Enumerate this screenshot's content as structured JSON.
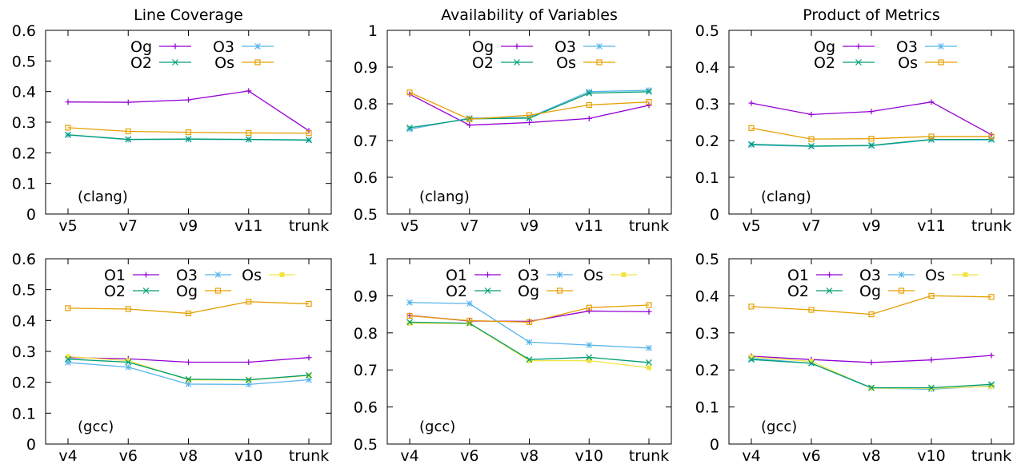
{
  "figure_title": "",
  "chart_data": [
    {
      "type": "line",
      "title": "Line Coverage",
      "note": "(clang)",
      "categories": [
        "v5",
        "v7",
        "v9",
        "v11",
        "trunk"
      ],
      "ylim": [
        0,
        0.6
      ],
      "yticks": [
        "0",
        "0.1",
        "0.2",
        "0.3",
        "0.4",
        "0.5",
        "0.6"
      ],
      "legend_layout": [
        [
          "Og",
          "O3"
        ],
        [
          "O2",
          "Os"
        ]
      ],
      "series": [
        {
          "name": "Og",
          "color": "#9400d3",
          "marker": "plus",
          "values": [
            0.366,
            0.365,
            0.373,
            0.402,
            0.272
          ]
        },
        {
          "name": "O3",
          "color": "#56b4e9",
          "marker": "star",
          "values": [
            0.258,
            0.243,
            0.244,
            0.243,
            0.241
          ]
        },
        {
          "name": "O2",
          "color": "#009e73",
          "marker": "cross",
          "values": [
            0.259,
            0.244,
            0.245,
            0.244,
            0.242
          ]
        },
        {
          "name": "Os",
          "color": "#e69f00",
          "marker": "square",
          "values": [
            0.282,
            0.27,
            0.267,
            0.265,
            0.264
          ]
        }
      ]
    },
    {
      "type": "line",
      "title": "Availability of Variables",
      "note": "(clang)",
      "categories": [
        "v5",
        "v7",
        "v9",
        "v11",
        "trunk"
      ],
      "ylim": [
        0.5,
        1
      ],
      "yticks": [
        "0.5",
        "0.6",
        "0.7",
        "0.8",
        "0.9",
        "1"
      ],
      "legend_layout": [
        [
          "Og",
          "O3"
        ],
        [
          "O2",
          "Os"
        ]
      ],
      "series": [
        {
          "name": "Og",
          "color": "#9400d3",
          "marker": "plus",
          "values": [
            0.826,
            0.742,
            0.749,
            0.76,
            0.796
          ]
        },
        {
          "name": "O3",
          "color": "#56b4e9",
          "marker": "star",
          "values": [
            0.731,
            0.761,
            0.763,
            0.833,
            0.837
          ]
        },
        {
          "name": "O2",
          "color": "#009e73",
          "marker": "cross",
          "values": [
            0.735,
            0.759,
            0.761,
            0.829,
            0.833
          ]
        },
        {
          "name": "Os",
          "color": "#e69f00",
          "marker": "square",
          "values": [
            0.831,
            0.758,
            0.769,
            0.797,
            0.805
          ]
        }
      ]
    },
    {
      "type": "line",
      "title": "Product of Metrics",
      "note": "(clang)",
      "categories": [
        "v5",
        "v7",
        "v9",
        "v11",
        "trunk"
      ],
      "ylim": [
        0,
        0.5
      ],
      "yticks": [
        "0",
        "0.1",
        "0.2",
        "0.3",
        "0.4",
        "0.5"
      ],
      "legend_layout": [
        [
          "Og",
          "O3"
        ],
        [
          "O2",
          "Os"
        ]
      ],
      "series": [
        {
          "name": "Og",
          "color": "#9400d3",
          "marker": "plus",
          "values": [
            0.302,
            0.271,
            0.279,
            0.305,
            0.216
          ]
        },
        {
          "name": "O3",
          "color": "#56b4e9",
          "marker": "star",
          "values": [
            0.188,
            0.184,
            0.186,
            0.202,
            0.202
          ]
        },
        {
          "name": "O2",
          "color": "#009e73",
          "marker": "cross",
          "values": [
            0.19,
            0.185,
            0.187,
            0.203,
            0.203
          ]
        },
        {
          "name": "Os",
          "color": "#e69f00",
          "marker": "square",
          "values": [
            0.234,
            0.204,
            0.205,
            0.211,
            0.211
          ]
        }
      ]
    },
    {
      "type": "line",
      "title": "",
      "note": "(gcc)",
      "categories": [
        "v4",
        "v6",
        "v8",
        "v10",
        "trunk"
      ],
      "ylim": [
        0,
        0.6
      ],
      "yticks": [
        "0",
        "0.1",
        "0.2",
        "0.3",
        "0.4",
        "0.5",
        "0.6"
      ],
      "legend_layout": [
        [
          "O1",
          "O3",
          "Os"
        ],
        [
          "O2",
          "Og"
        ]
      ],
      "series": [
        {
          "name": "O1",
          "color": "#9400d3",
          "marker": "plus",
          "values": [
            0.28,
            0.276,
            0.265,
            0.265,
            0.28
          ]
        },
        {
          "name": "O3",
          "color": "#56b4e9",
          "marker": "star",
          "values": [
            0.264,
            0.249,
            0.194,
            0.193,
            0.208
          ]
        },
        {
          "name": "Os",
          "color": "#f0e442",
          "marker": "fsquare",
          "values": [
            0.283,
            0.27,
            0.208,
            0.207,
            0.222
          ]
        },
        {
          "name": "O2",
          "color": "#009e73",
          "marker": "cross",
          "values": [
            0.275,
            0.265,
            0.21,
            0.208,
            0.223
          ]
        },
        {
          "name": "Og",
          "color": "#e69f00",
          "marker": "square",
          "values": [
            0.44,
            0.437,
            0.423,
            0.461,
            0.454
          ]
        }
      ]
    },
    {
      "type": "line",
      "title": "",
      "note": "(gcc)",
      "categories": [
        "v4",
        "v6",
        "v8",
        "v10",
        "trunk"
      ],
      "ylim": [
        0.5,
        1
      ],
      "yticks": [
        "0.5",
        "0.6",
        "0.7",
        "0.8",
        "0.9",
        "1"
      ],
      "legend_layout": [
        [
          "O1",
          "O3",
          "Os"
        ],
        [
          "O2",
          "Og"
        ]
      ],
      "series": [
        {
          "name": "O1",
          "color": "#9400d3",
          "marker": "plus",
          "values": [
            0.847,
            0.832,
            0.831,
            0.859,
            0.857
          ]
        },
        {
          "name": "O3",
          "color": "#56b4e9",
          "marker": "star",
          "values": [
            0.882,
            0.879,
            0.775,
            0.767,
            0.759
          ]
        },
        {
          "name": "Os",
          "color": "#f0e442",
          "marker": "fsquare",
          "values": [
            0.826,
            0.825,
            0.725,
            0.725,
            0.706
          ]
        },
        {
          "name": "O2",
          "color": "#009e73",
          "marker": "cross",
          "values": [
            0.829,
            0.826,
            0.728,
            0.734,
            0.72
          ]
        },
        {
          "name": "Og",
          "color": "#e69f00",
          "marker": "square",
          "values": [
            0.846,
            0.833,
            0.829,
            0.868,
            0.875
          ]
        }
      ]
    },
    {
      "type": "line",
      "title": "",
      "note": "(gcc)",
      "categories": [
        "v4",
        "v6",
        "v8",
        "v10",
        "trunk"
      ],
      "ylim": [
        0,
        0.5
      ],
      "yticks": [
        "0",
        "0.1",
        "0.2",
        "0.3",
        "0.4",
        "0.5"
      ],
      "legend_layout": [
        [
          "O1",
          "O3",
          "Os"
        ],
        [
          "O2",
          "Og"
        ]
      ],
      "series": [
        {
          "name": "O1",
          "color": "#9400d3",
          "marker": "plus",
          "values": [
            0.237,
            0.228,
            0.22,
            0.227,
            0.239
          ]
        },
        {
          "name": "O3",
          "color": "#56b4e9",
          "marker": "star",
          "values": [
            0.231,
            0.218,
            0.151,
            0.148,
            0.157
          ]
        },
        {
          "name": "Os",
          "color": "#f0e442",
          "marker": "fsquare",
          "values": [
            0.235,
            0.223,
            0.151,
            0.15,
            0.156
          ]
        },
        {
          "name": "O2",
          "color": "#009e73",
          "marker": "cross",
          "values": [
            0.228,
            0.218,
            0.152,
            0.152,
            0.161
          ]
        },
        {
          "name": "Og",
          "color": "#e69f00",
          "marker": "square",
          "values": [
            0.371,
            0.362,
            0.35,
            0.4,
            0.397
          ]
        }
      ]
    }
  ]
}
